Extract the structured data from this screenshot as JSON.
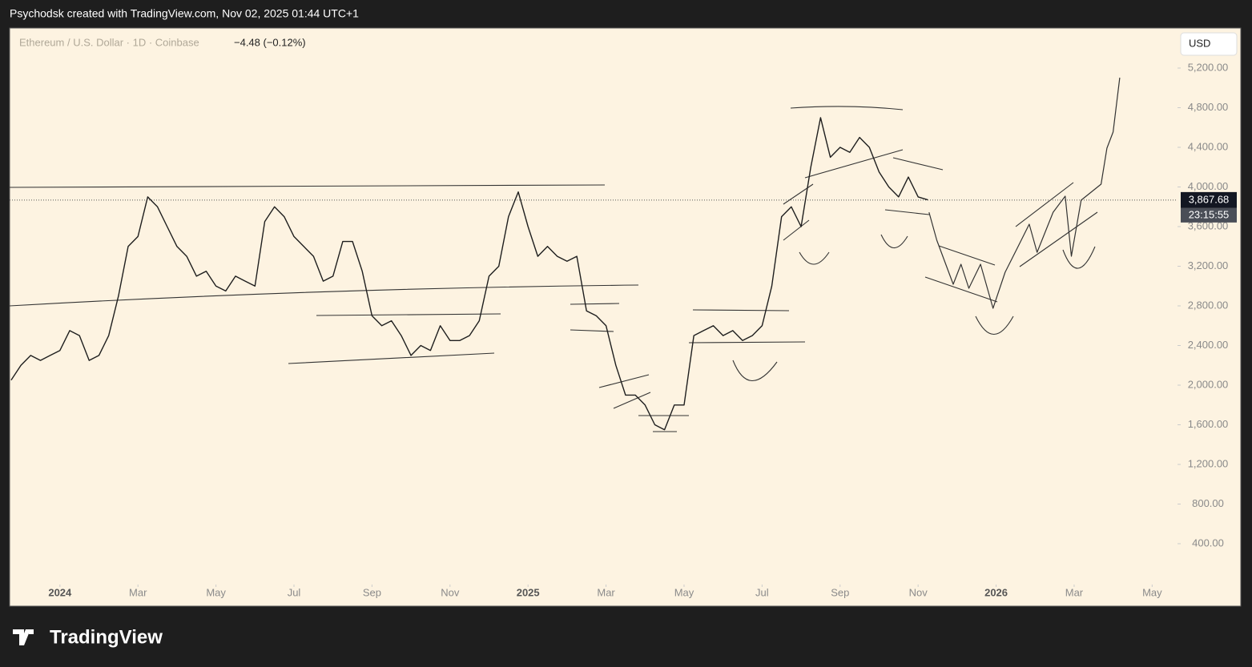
{
  "header": {
    "credit": "Psychodsk created with TradingView.com, Nov 02, 2025 01:44 UTC+1"
  },
  "chart_data": {
    "type": "line",
    "symbol": "Ethereum / U.S. Dollar · 1D · Coinbase",
    "change": "−4.48 (−0.12%)",
    "currency": "USD",
    "last_price": {
      "value": 3867.68,
      "label": "3,867.68"
    },
    "countdown": "23:15:55",
    "xlim": [
      -1.29,
      28.65
    ],
    "xticks": [
      {
        "value": 0,
        "label": "2024"
      },
      {
        "value": 2,
        "label": "Mar"
      },
      {
        "value": 4,
        "label": "May"
      },
      {
        "value": 6,
        "label": "Jul"
      },
      {
        "value": 8,
        "label": "Sep"
      },
      {
        "value": 10,
        "label": "Nov"
      },
      {
        "value": 12,
        "label": "2025"
      },
      {
        "value": 14,
        "label": "Mar"
      },
      {
        "value": 16,
        "label": "May"
      },
      {
        "value": 18,
        "label": "Jul"
      },
      {
        "value": 20,
        "label": "Sep"
      },
      {
        "value": 22,
        "label": "Nov"
      },
      {
        "value": 24,
        "label": "2026"
      },
      {
        "value": 26,
        "label": "Mar"
      },
      {
        "value": 28,
        "label": "May"
      }
    ],
    "ylim": [
      0,
      5600
    ],
    "yticks": [
      {
        "value": 400,
        "label": "400.00"
      },
      {
        "value": 800,
        "label": "800.00"
      },
      {
        "value": 1200,
        "label": "1,200.00"
      },
      {
        "value": 1600,
        "label": "1,600.00"
      },
      {
        "value": 2000,
        "label": "2,000.00"
      },
      {
        "value": 2400,
        "label": "2,400.00"
      },
      {
        "value": 2800,
        "label": "2,800.00"
      },
      {
        "value": 3200,
        "label": "3,200.00"
      },
      {
        "value": 3600,
        "label": "3,600.00"
      },
      {
        "value": 4000,
        "label": "4,000.00"
      },
      {
        "value": 4400,
        "label": "4,400.00"
      },
      {
        "value": 4800,
        "label": "4,800.00"
      },
      {
        "value": 5200,
        "label": "5,200.00"
      }
    ],
    "series": [
      {
        "name": "Ethereum / U.S. Dollar · 1D · Coinbase",
        "color": "#1e1e1e",
        "x": [
          -1.25,
          -1,
          -0.75,
          -0.5,
          -0.25,
          0,
          0.25,
          0.5,
          0.75,
          1,
          1.25,
          1.5,
          1.75,
          2,
          2.25,
          2.5,
          2.75,
          3,
          3.25,
          3.5,
          3.75,
          4,
          4.25,
          4.5,
          4.75,
          5,
          5.25,
          5.5,
          5.75,
          6,
          6.25,
          6.5,
          6.75,
          7,
          7.25,
          7.5,
          7.75,
          8,
          8.25,
          8.5,
          8.75,
          9,
          9.25,
          9.5,
          9.75,
          10,
          10.25,
          10.5,
          10.75,
          11,
          11.25,
          11.5,
          11.75,
          12,
          12.25,
          12.5,
          12.75,
          13,
          13.25,
          13.5,
          13.75,
          14,
          14.25,
          14.5,
          14.75,
          15,
          15.25,
          15.5,
          15.75,
          16,
          16.25,
          16.5,
          16.75,
          17,
          17.25,
          17.5,
          17.75,
          18,
          18.25,
          18.5,
          18.75,
          19,
          19.25,
          19.5,
          19.75,
          20,
          20.25,
          20.5,
          20.75,
          21,
          21.25,
          21.5,
          21.75,
          22,
          22.25
        ],
        "values": [
          2050,
          2200,
          2300,
          2250,
          2300,
          2350,
          2550,
          2500,
          2250,
          2300,
          2500,
          2900,
          3400,
          3500,
          3900,
          3800,
          3600,
          3400,
          3300,
          3100,
          3150,
          3000,
          2950,
          3100,
          3050,
          3000,
          3650,
          3800,
          3700,
          3500,
          3400,
          3300,
          3050,
          3100,
          3450,
          3450,
          3150,
          2700,
          2600,
          2650,
          2500,
          2300,
          2400,
          2350,
          2600,
          2450,
          2450,
          2500,
          2650,
          3100,
          3200,
          3700,
          3950,
          3600,
          3300,
          3400,
          3300,
          3250,
          3300,
          2750,
          2700,
          2600,
          2200,
          1900,
          1900,
          1800,
          1600,
          1550,
          1800,
          1800,
          2500,
          2550,
          2600,
          2500,
          2550,
          2450,
          2500,
          2600,
          3000,
          3700,
          3800,
          3600,
          4200,
          4700,
          4300,
          4400,
          4350,
          4500,
          4400,
          4150,
          4000,
          3900,
          4100,
          3900,
          3870
        ]
      },
      {
        "color": "#333333",
        "x": [
          22.28,
          22.48,
          22.9,
          23.1,
          23.3,
          23.6,
          23.92,
          24.23,
          24.54,
          24.85,
          25.05,
          25.46,
          25.77,
          25.93,
          26.18,
          26.69,
          26.84,
          27.0,
          27.17
        ],
        "values": [
          3745,
          3463,
          3018,
          3220,
          2978,
          3220,
          2776,
          3139,
          3382,
          3624,
          3341,
          3745,
          3907,
          3301,
          3867,
          4028,
          4392,
          4554,
          5103
        ]
      }
    ]
  },
  "footer": {
    "logo": "TradingView"
  }
}
